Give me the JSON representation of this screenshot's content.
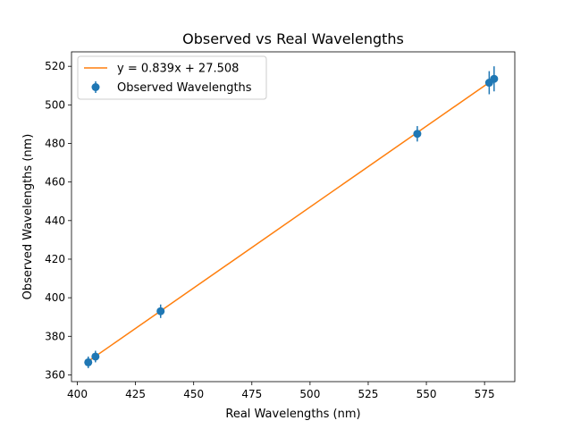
{
  "chart_data": {
    "type": "scatter",
    "title": "Observed vs Real Wavelengths",
    "xlabel": "Real Wavelengths (nm)",
    "ylabel": "Observed Wavelengths (nm)",
    "xlim": [
      397.5,
      588
    ],
    "ylim": [
      356.5,
      527.5
    ],
    "xticks": [
      400,
      425,
      450,
      475,
      500,
      525,
      550,
      575
    ],
    "yticks": [
      360,
      380,
      400,
      420,
      440,
      460,
      480,
      500,
      520
    ],
    "xtick_labels": [
      "400",
      "425",
      "450",
      "475",
      "500",
      "525",
      "550",
      "575"
    ],
    "ytick_labels": [
      "360",
      "380",
      "400",
      "420",
      "440",
      "460",
      "480",
      "500",
      "520"
    ],
    "grid": false,
    "legend_position": "upper-left",
    "series": [
      {
        "name": "Observed Wavelengths",
        "kind": "errorbar-scatter",
        "color": "#1f77b4",
        "points": [
          {
            "x": 404.7,
            "y": 366.5,
            "yerr": 3.0
          },
          {
            "x": 407.8,
            "y": 369.5,
            "yerr": 3.0
          },
          {
            "x": 435.8,
            "y": 393.0,
            "yerr": 3.5
          },
          {
            "x": 546.1,
            "y": 485.0,
            "yerr": 4.0
          },
          {
            "x": 577.0,
            "y": 511.5,
            "yerr": 6.0
          },
          {
            "x": 579.1,
            "y": 513.5,
            "yerr": 6.5
          }
        ]
      },
      {
        "name": "y = 0.839x + 27.508",
        "kind": "line",
        "color": "#ff7f0e",
        "slope": 0.839,
        "intercept": 27.508,
        "x_range": [
          404.7,
          579.1
        ]
      }
    ]
  }
}
